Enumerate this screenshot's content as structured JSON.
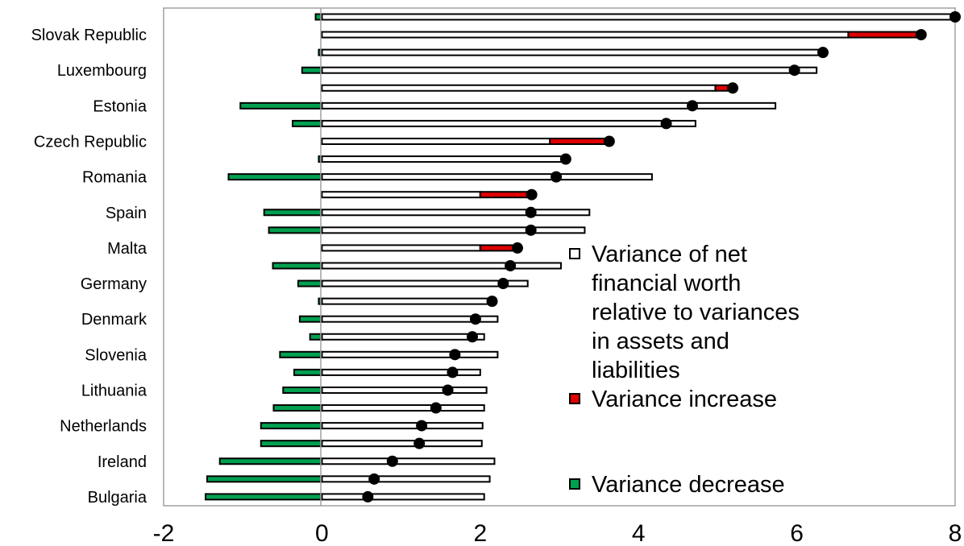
{
  "chart_data": {
    "type": "bar",
    "xlim": [
      -2,
      8
    ],
    "x_ticks": [
      "-2",
      "0",
      "2",
      "4",
      "6",
      "8"
    ],
    "grid": false,
    "legend_position": "right",
    "colors": {
      "increase": "#e00000",
      "decrease": "#00a050",
      "base": "#ffffff",
      "outline": "#000000",
      "axis_line": "#a0a0a0",
      "plot_border": "#a0a0a0"
    },
    "categories": [
      "",
      "Slovak Republic",
      "",
      "Luxembourg",
      "",
      "Estonia",
      "",
      "Czech Republic",
      "",
      "Romania",
      "",
      "Spain",
      "",
      "Malta",
      "",
      "Germany",
      "",
      "Denmark",
      "",
      "Slovenia",
      "",
      "Lithuania",
      "",
      "Netherlands",
      "",
      "Ireland",
      "",
      "Bulgaria"
    ],
    "series": [
      {
        "name": "Variance of net financial worth relative to variances in assets and liabilities",
        "values": [
          8.0,
          6.65,
          6.3,
          6.25,
          4.97,
          5.73,
          4.72,
          2.88,
          3.08,
          4.17,
          2.0,
          3.38,
          3.32,
          2.0,
          3.02,
          2.6,
          2.15,
          2.22,
          2.05,
          2.22,
          2.0,
          2.08,
          2.05,
          2.03,
          2.02,
          2.18,
          2.12,
          2.05
        ]
      },
      {
        "name": "Variance increase",
        "values": [
          0,
          0.9,
          0,
          0,
          0.22,
          0,
          0,
          0.75,
          0,
          0,
          0.65,
          0,
          0,
          0.47,
          0,
          0,
          0,
          0,
          0,
          0,
          0,
          0,
          0,
          0,
          0,
          0,
          0,
          0
        ]
      },
      {
        "name": "Variance decrease",
        "values": [
          -0.08,
          0,
          -0.04,
          -0.25,
          0,
          -1.03,
          -0.37,
          0,
          -0.04,
          -1.18,
          0,
          -0.73,
          -0.67,
          0,
          -0.62,
          -0.3,
          -0.04,
          -0.28,
          -0.15,
          -0.53,
          -0.35,
          -0.49,
          -0.61,
          -0.77,
          -0.77,
          -1.29,
          -1.45,
          -1.47
        ]
      },
      {
        "name": "",
        "values": [
          8.0,
          7.57,
          6.33,
          5.97,
          5.19,
          4.68,
          4.35,
          3.63,
          3.08,
          2.96,
          2.65,
          2.64,
          2.64,
          2.47,
          2.38,
          2.29,
          2.15,
          1.94,
          1.9,
          1.68,
          1.65,
          1.59,
          1.44,
          1.26,
          1.23,
          0.89,
          0.66,
          0.58
        ]
      }
    ]
  },
  "legend": {
    "items": [
      {
        "label": "Variance of net financial worth relative to variances in assets and liabilities",
        "swatch": "#ffffff"
      },
      {
        "label": "Variance increase",
        "swatch": "#e00000"
      },
      {
        "label": "Variance decrease",
        "swatch": "#00a050"
      }
    ]
  }
}
